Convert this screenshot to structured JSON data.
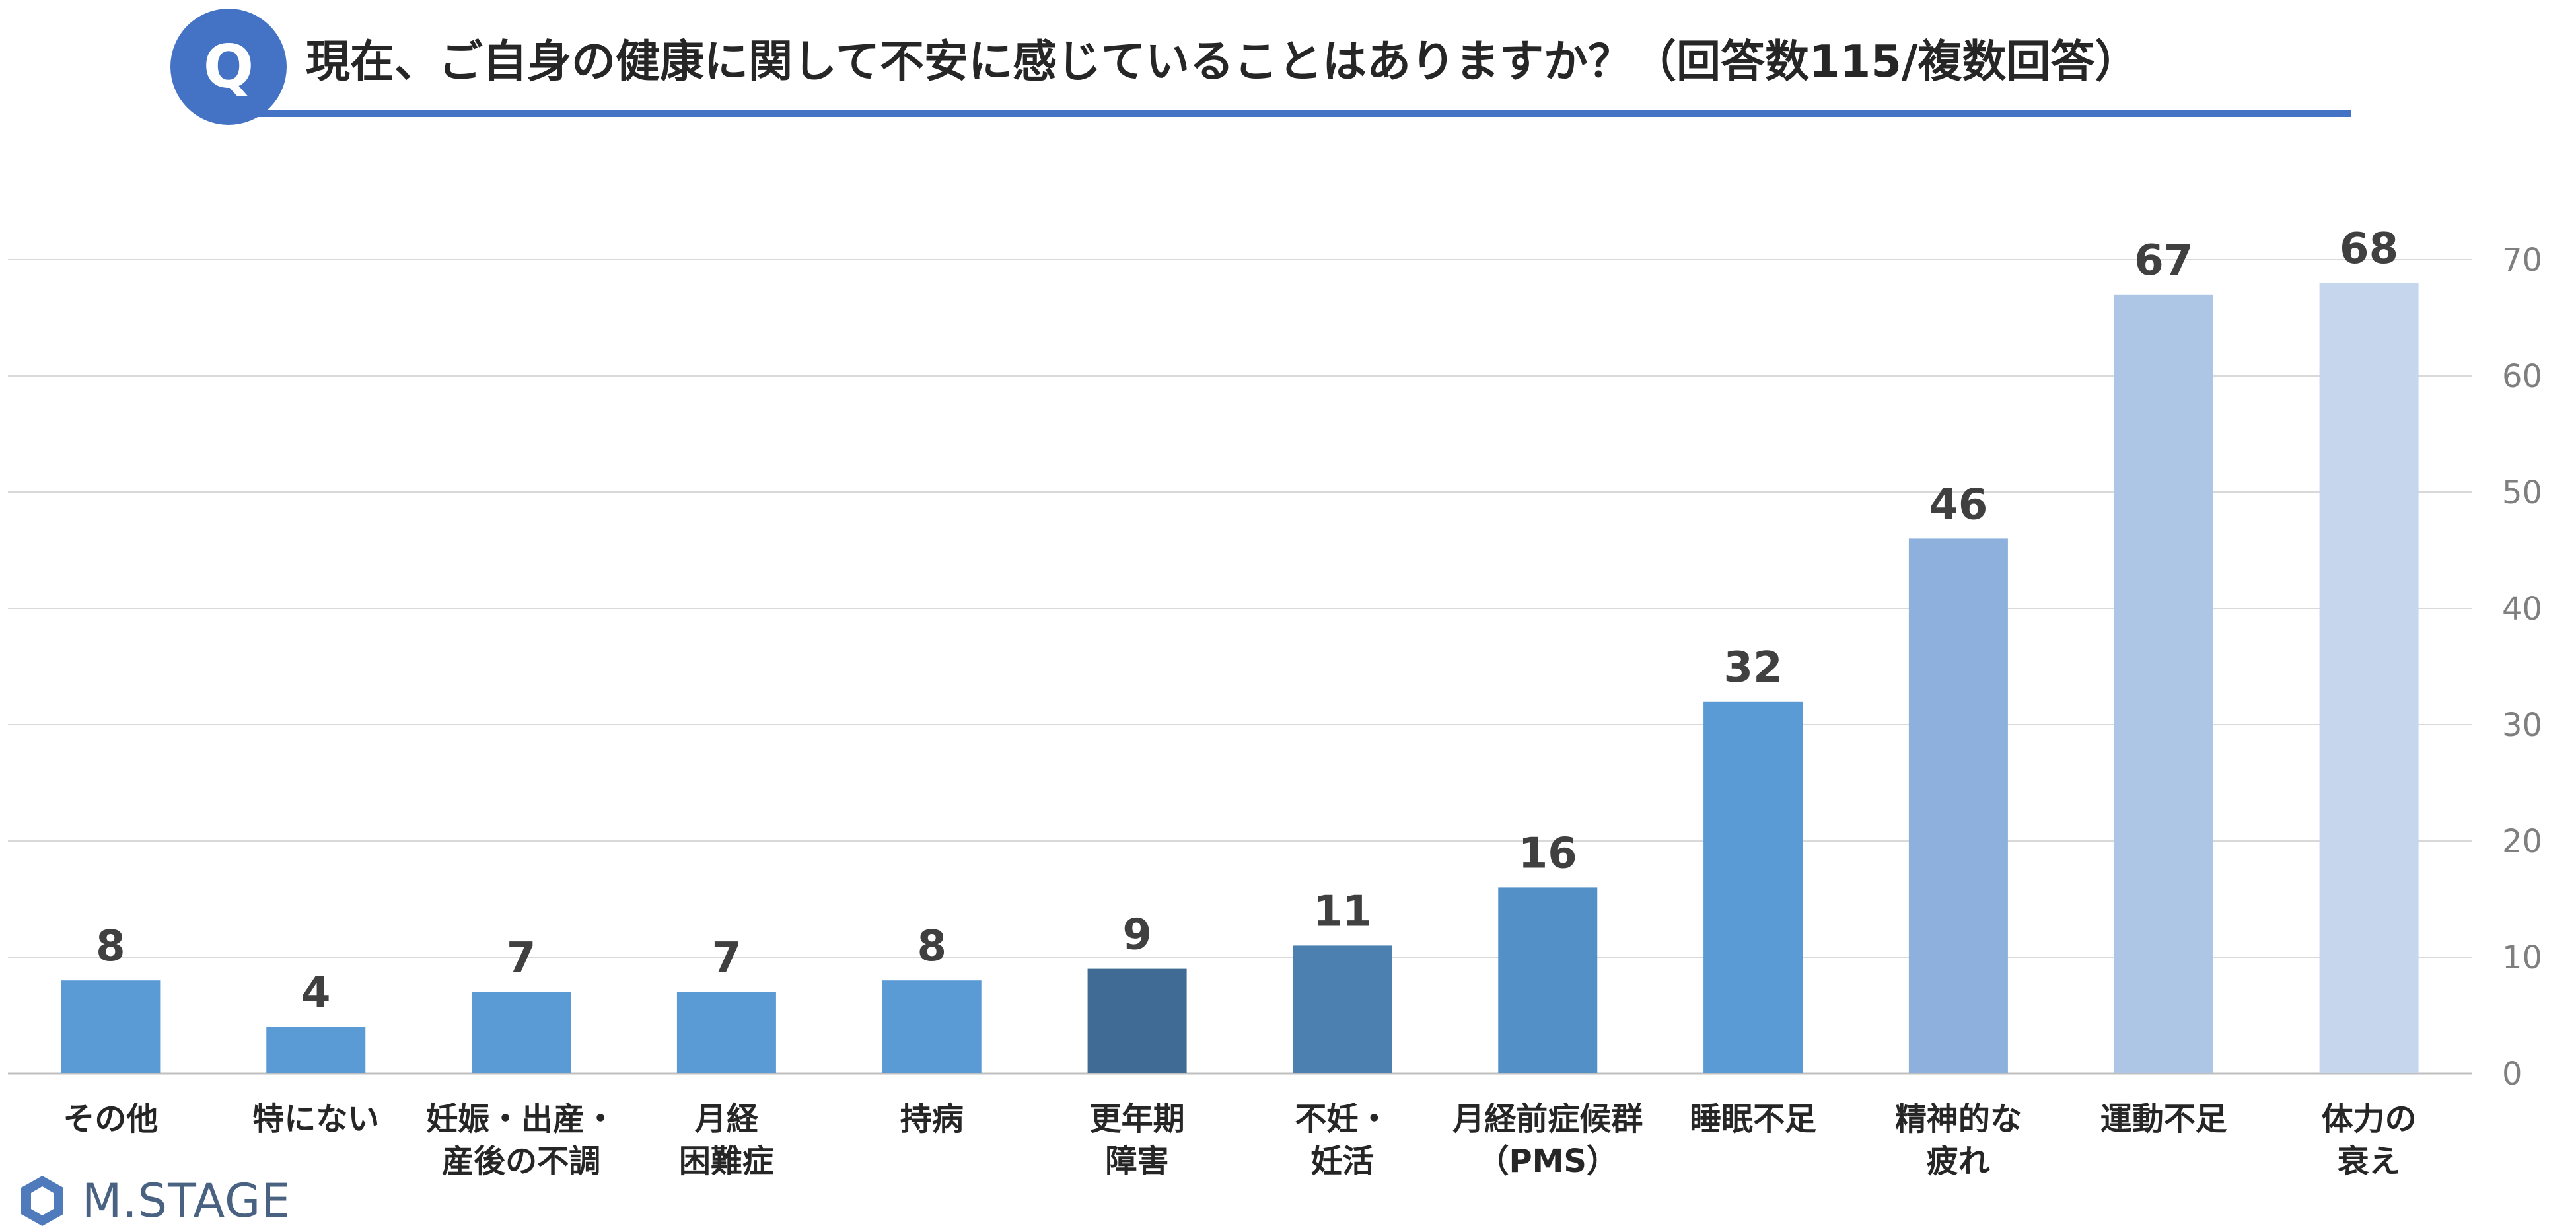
{
  "header": {
    "badge": "Q",
    "question": "現在、ご自身の健康に関して不安に感じていることはありますか？（回答数115/複数回答）"
  },
  "chart_data": {
    "type": "bar",
    "categories": [
      [
        "その他"
      ],
      [
        "特にない"
      ],
      [
        "妊娠・出産・",
        "産後の不調"
      ],
      [
        "月経",
        "困難症"
      ],
      [
        "持病"
      ],
      [
        "更年期",
        "障害"
      ],
      [
        "不妊・",
        "妊活"
      ],
      [
        "月経前症候群",
        "（PMS）"
      ],
      [
        "睡眠不足"
      ],
      [
        "精神的な",
        "疲れ"
      ],
      [
        "運動不足"
      ],
      [
        "体力の",
        "衰え"
      ]
    ],
    "values": [
      8,
      4,
      7,
      7,
      8,
      9,
      11,
      16,
      32,
      46,
      67,
      68
    ],
    "colors": [
      "#5b9bd5",
      "#5b9bd5",
      "#5b9bd5",
      "#5b9bd5",
      "#5b9bd5",
      "#3f6b95",
      "#4b80b0",
      "#5490c8",
      "#5b9bd5",
      "#8db1dc",
      "#adc6e5",
      "#c5d6ed"
    ],
    "ylim": [
      0,
      70
    ],
    "yticks": [
      0,
      10,
      20,
      30,
      40,
      50,
      60,
      70
    ],
    "y_axis_side": "right",
    "grid": true,
    "data_labels": true,
    "title": "",
    "xlabel": "",
    "ylabel": ""
  },
  "logo": {
    "text": "M.STAGE"
  }
}
